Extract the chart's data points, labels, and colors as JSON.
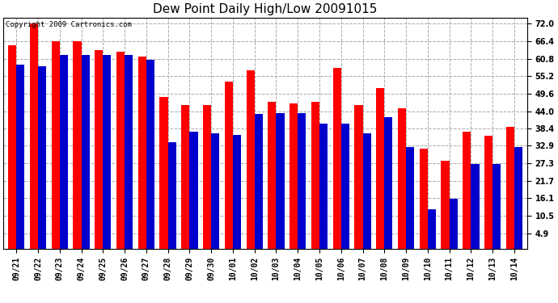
{
  "title": "Dew Point Daily High/Low 20091015",
  "copyright": "Copyright 2009 Cartronics.com",
  "categories": [
    "09/21",
    "09/22",
    "09/23",
    "09/24",
    "09/25",
    "09/26",
    "09/27",
    "09/28",
    "09/29",
    "09/30",
    "10/01",
    "10/02",
    "10/03",
    "10/04",
    "10/05",
    "10/06",
    "10/07",
    "10/08",
    "10/09",
    "10/10",
    "10/11",
    "10/12",
    "10/13",
    "10/14"
  ],
  "highs": [
    65.0,
    72.0,
    66.5,
    66.5,
    63.5,
    63.0,
    61.5,
    48.5,
    46.0,
    46.0,
    53.5,
    57.0,
    47.0,
    46.5,
    47.0,
    58.0,
    46.0,
    51.5,
    45.0,
    32.0,
    28.0,
    37.5,
    36.0,
    39.0
  ],
  "lows": [
    59.0,
    58.5,
    62.0,
    62.0,
    62.0,
    62.0,
    60.5,
    34.0,
    37.5,
    37.0,
    36.5,
    43.0,
    43.5,
    43.5,
    40.0,
    40.0,
    37.0,
    42.0,
    32.5,
    12.5,
    16.0,
    27.0,
    27.0,
    32.5
  ],
  "ymin": 0,
  "ymax": 74,
  "ytick_vals": [
    4.9,
    10.5,
    16.1,
    21.7,
    27.3,
    32.9,
    38.4,
    44.0,
    49.6,
    55.2,
    60.8,
    66.4,
    72.0
  ],
  "ytick_labels": [
    "4.9",
    "10.5",
    "16.1",
    "21.7",
    "27.3",
    "32.9",
    "38.4",
    "44.0",
    "49.6",
    "55.2",
    "60.8",
    "66.4",
    "72.0"
  ],
  "bar_width": 0.38,
  "high_color": "#ff0000",
  "low_color": "#0000cc",
  "bg_color": "#ffffff",
  "grid_color": "#aaaaaa",
  "title_fontsize": 11,
  "tick_fontsize": 7,
  "copyright_fontsize": 6.5
}
